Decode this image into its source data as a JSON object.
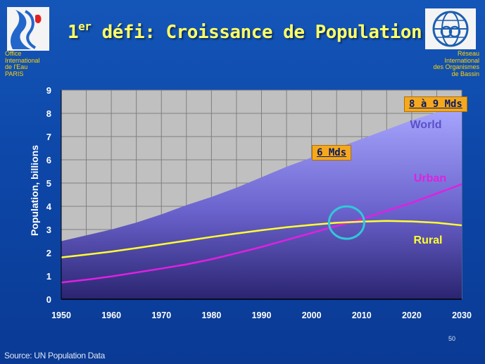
{
  "slide": {
    "title_main": "1",
    "title_sup": "er",
    "title_rest": " défi: Croissance de Population",
    "org_left": [
      "Office",
      "International",
      "de l'Eau",
      "PARIS"
    ],
    "org_right": [
      "Réseau",
      "International",
      "des Organismes",
      "de Bassin"
    ],
    "source": "Source: UN Population Data",
    "page_number": "50"
  },
  "colors": {
    "world_fill": "#a8a8ff",
    "urban_line": "#e020e0",
    "rural_line": "#ffff30",
    "plot_bg": "#c0c0c0",
    "grid": "#7f7f7f",
    "label": "#ffffff"
  },
  "chart_data": {
    "type": "area",
    "title": "",
    "xlabel": "",
    "ylabel": "Population, billions",
    "xlim": [
      1950,
      2030
    ],
    "ylim": [
      0,
      9
    ],
    "x_ticks": [
      1950,
      1960,
      1970,
      1980,
      1990,
      2000,
      2010,
      2020,
      2030
    ],
    "y_ticks": [
      0,
      1,
      2,
      3,
      4,
      5,
      6,
      7,
      8,
      9
    ],
    "grid": true,
    "x": [
      1950,
      1955,
      1960,
      1965,
      1970,
      1975,
      1980,
      1985,
      1990,
      1995,
      2000,
      2005,
      2010,
      2015,
      2020,
      2025,
      2030
    ],
    "series": [
      {
        "name": "World",
        "type": "area",
        "values": [
          2.5,
          2.75,
          3.0,
          3.3,
          3.65,
          4.05,
          4.4,
          4.8,
          5.25,
          5.7,
          6.1,
          6.5,
          6.9,
          7.3,
          7.7,
          8.05,
          8.35
        ]
      },
      {
        "name": "Urban",
        "type": "line",
        "values": [
          0.72,
          0.84,
          0.98,
          1.15,
          1.32,
          1.5,
          1.72,
          1.98,
          2.25,
          2.55,
          2.85,
          3.15,
          3.45,
          3.8,
          4.15,
          4.55,
          4.95
        ]
      },
      {
        "name": "Rural",
        "type": "line",
        "values": [
          1.8,
          1.92,
          2.05,
          2.2,
          2.36,
          2.52,
          2.68,
          2.83,
          2.97,
          3.1,
          3.2,
          3.29,
          3.34,
          3.37,
          3.35,
          3.29,
          3.18
        ]
      }
    ],
    "annotations": [
      {
        "text": "8 à 9 Mds"
      },
      {
        "text": "6 Mds"
      }
    ],
    "highlight": {
      "x": 2007,
      "y": 3.3
    }
  }
}
